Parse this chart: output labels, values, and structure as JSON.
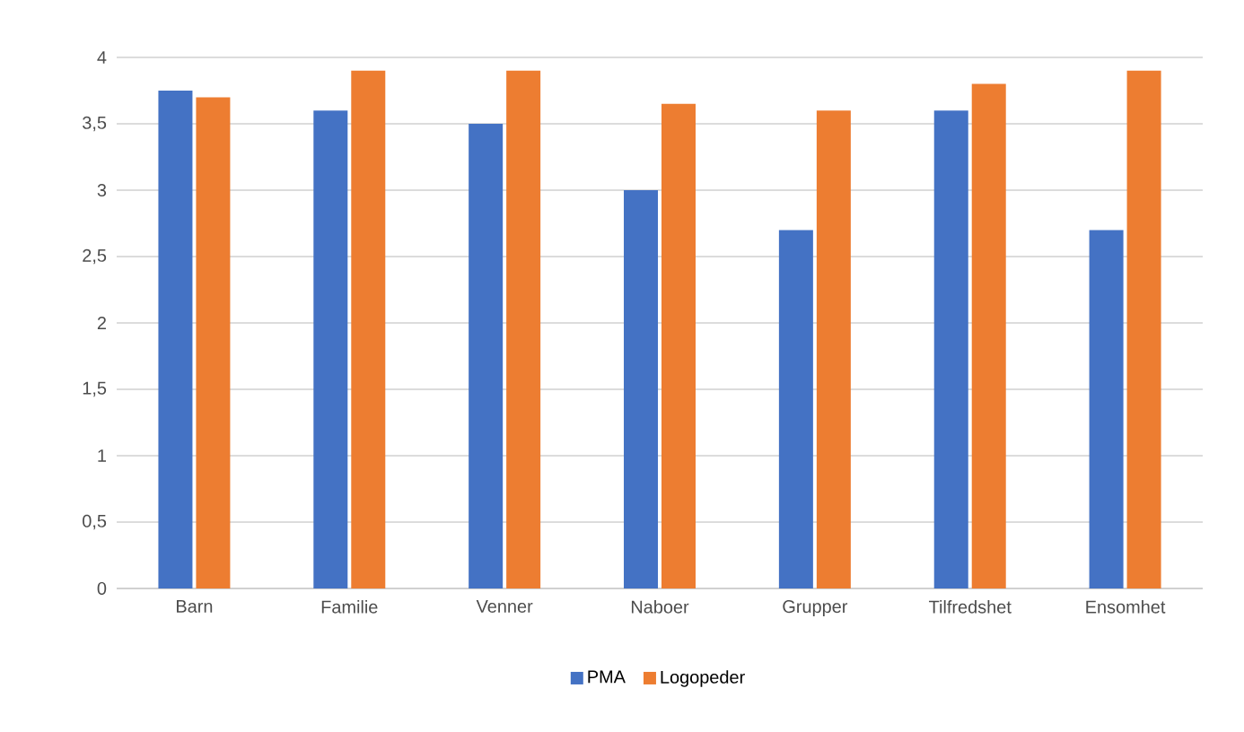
{
  "chart_data": {
    "type": "bar",
    "categories": [
      "Barn",
      "Familie",
      "Venner",
      "Naboer",
      "Grupper",
      "Tilfredshet",
      "Ensomhet"
    ],
    "series": [
      {
        "name": "PMA",
        "color": "#4472c4",
        "values": [
          3.75,
          3.6,
          3.5,
          3.0,
          2.7,
          3.6,
          2.7
        ]
      },
      {
        "name": "Logopeder",
        "color": "#ed7d31",
        "values": [
          3.7,
          3.9,
          3.9,
          3.65,
          3.6,
          3.8,
          3.9
        ]
      }
    ],
    "ylim": [
      0,
      4
    ],
    "yticks": [
      0,
      {
        "value": 0.5,
        "label": "0,5"
      },
      1,
      {
        "value": 1.5,
        "label": "1,5"
      },
      2,
      {
        "value": 2.5,
        "label": "2,5"
      },
      3,
      {
        "value": 3.5,
        "label": "3,5"
      },
      4
    ],
    "grid": "y",
    "legend": "bottom"
  }
}
